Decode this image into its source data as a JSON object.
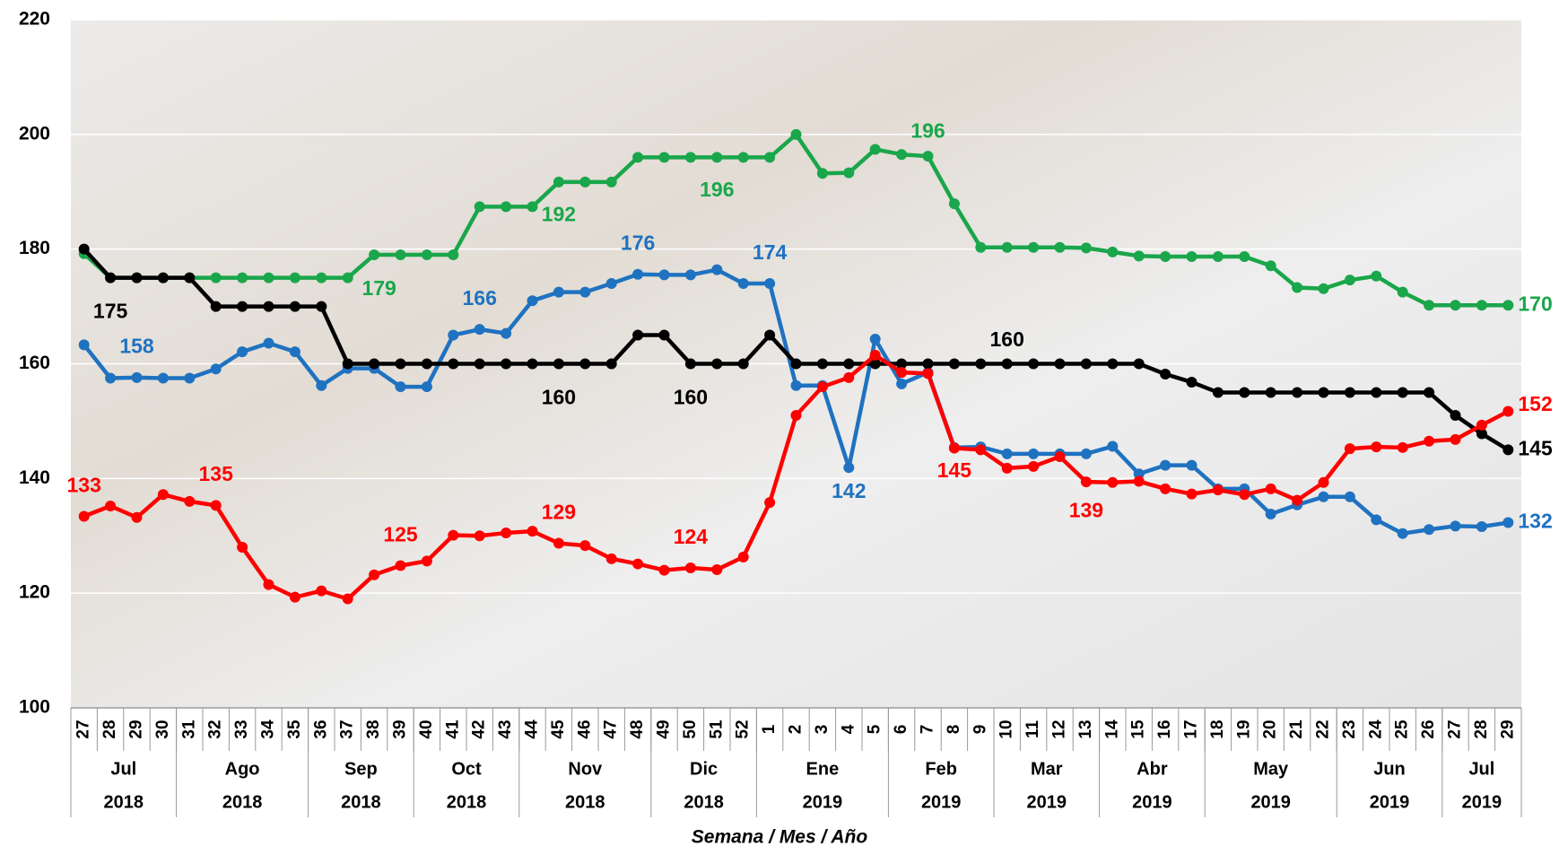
{
  "chart_data": {
    "type": "line",
    "x_title": "Semana / Mes / Año",
    "categories": [
      [
        "27",
        "Jul",
        "2018"
      ],
      [
        "28",
        "Jul",
        "2018"
      ],
      [
        "29",
        "Jul",
        "2018"
      ],
      [
        "30",
        "Jul",
        "2018"
      ],
      [
        "31",
        "Ago",
        "2018"
      ],
      [
        "32",
        "Ago",
        "2018"
      ],
      [
        "33",
        "Ago",
        "2018"
      ],
      [
        "34",
        "Ago",
        "2018"
      ],
      [
        "35",
        "Ago",
        "2018"
      ],
      [
        "36",
        "Sep",
        "2018"
      ],
      [
        "37",
        "Sep",
        "2018"
      ],
      [
        "38",
        "Sep",
        "2018"
      ],
      [
        "39",
        "Sep",
        "2018"
      ],
      [
        "40",
        "Oct",
        "2018"
      ],
      [
        "41",
        "Oct",
        "2018"
      ],
      [
        "42",
        "Oct",
        "2018"
      ],
      [
        "43",
        "Oct",
        "2018"
      ],
      [
        "44",
        "Nov",
        "2018"
      ],
      [
        "45",
        "Nov",
        "2018"
      ],
      [
        "46",
        "Nov",
        "2018"
      ],
      [
        "47",
        "Nov",
        "2018"
      ],
      [
        "48",
        "Nov",
        "2018"
      ],
      [
        "49",
        "Dic",
        "2018"
      ],
      [
        "50",
        "Dic",
        "2018"
      ],
      [
        "51",
        "Dic",
        "2018"
      ],
      [
        "52",
        "Dic",
        "2018"
      ],
      [
        "1",
        "Ene",
        "2019"
      ],
      [
        "2",
        "Ene",
        "2019"
      ],
      [
        "3",
        "Ene",
        "2019"
      ],
      [
        "4",
        "Ene",
        "2019"
      ],
      [
        "5",
        "Ene",
        "2019"
      ],
      [
        "6",
        "Feb",
        "2019"
      ],
      [
        "7",
        "Feb",
        "2019"
      ],
      [
        "8",
        "Feb",
        "2019"
      ],
      [
        "9",
        "Feb",
        "2019"
      ],
      [
        "10",
        "Mar",
        "2019"
      ],
      [
        "11",
        "Mar",
        "2019"
      ],
      [
        "12",
        "Mar",
        "2019"
      ],
      [
        "13",
        "Mar",
        "2019"
      ],
      [
        "14",
        "Abr",
        "2019"
      ],
      [
        "15",
        "Abr",
        "2019"
      ],
      [
        "16",
        "Abr",
        "2019"
      ],
      [
        "17",
        "Abr",
        "2019"
      ],
      [
        "18",
        "May",
        "2019"
      ],
      [
        "19",
        "May",
        "2019"
      ],
      [
        "20",
        "May",
        "2019"
      ],
      [
        "21",
        "May",
        "2019"
      ],
      [
        "22",
        "May",
        "2019"
      ],
      [
        "23",
        "Jun",
        "2019"
      ],
      [
        "24",
        "Jun",
        "2019"
      ],
      [
        "25",
        "Jun",
        "2019"
      ],
      [
        "26",
        "Jun",
        "2019"
      ],
      [
        "27",
        "Jul",
        "2019"
      ],
      [
        "28",
        "Jul",
        "2019"
      ],
      [
        "29",
        "Jul",
        "2019"
      ]
    ],
    "series": [
      {
        "color": "#1aa64a",
        "values": [
          179.2,
          175,
          175,
          175,
          175,
          175,
          175,
          175,
          175,
          175,
          175,
          179,
          179,
          179,
          179,
          187.4,
          187.4,
          187.4,
          191.7,
          191.7,
          191.7,
          196,
          196,
          196,
          196,
          196,
          196,
          200,
          193.2,
          193.3,
          197.4,
          196.5,
          196.2,
          187.9,
          180.3,
          180.3,
          180.3,
          180.3,
          180.2,
          179.5,
          178.8,
          178.7,
          178.7,
          178.7,
          178.7,
          177.1,
          173.3,
          173.1,
          174.6,
          175.3,
          172.5,
          170.2,
          170.2,
          170.2,
          170.2
        ],
        "value_labels": [
          null,
          null,
          null,
          null,
          null,
          null,
          null,
          null,
          null,
          null,
          null,
          "179",
          null,
          null,
          null,
          null,
          null,
          null,
          "192",
          null,
          null,
          null,
          null,
          null,
          "196",
          null,
          null,
          null,
          null,
          null,
          null,
          null,
          "196",
          null,
          null,
          null,
          null,
          null,
          null,
          null,
          null,
          null,
          null,
          null,
          null,
          null,
          null,
          null,
          null,
          null,
          null,
          null,
          null,
          null,
          "170"
        ]
      },
      {
        "color": "#1f72c0",
        "values": [
          163.3,
          157.5,
          157.6,
          157.5,
          157.5,
          159.1,
          162.1,
          163.6,
          162.1,
          156.2,
          159.2,
          159.2,
          156,
          156,
          165,
          166,
          165.3,
          171,
          172.5,
          172.5,
          174,
          175.6,
          175.5,
          175.5,
          176.4,
          174,
          174,
          156.2,
          156.2,
          141.9,
          164.3,
          156.5,
          158.5,
          145.4,
          145.5,
          144.3,
          144.3,
          144.3,
          144.3,
          145.6,
          140.8,
          142.3,
          142.3,
          138.2,
          138.2,
          133.8,
          135.4,
          136.8,
          136.8,
          132.8,
          130.4,
          131.1,
          131.7,
          131.6,
          132.3
        ],
        "value_labels": [
          null,
          null,
          "158",
          null,
          null,
          null,
          null,
          null,
          null,
          null,
          null,
          null,
          null,
          null,
          null,
          "166",
          null,
          null,
          null,
          null,
          null,
          "176",
          null,
          null,
          null,
          null,
          "174",
          null,
          null,
          "142",
          null,
          null,
          null,
          null,
          null,
          null,
          null,
          null,
          null,
          null,
          null,
          null,
          null,
          null,
          null,
          null,
          null,
          null,
          null,
          null,
          null,
          null,
          null,
          null,
          "132"
        ]
      },
      {
        "color": "#000000",
        "values": [
          180,
          175,
          175,
          175,
          175,
          170,
          170,
          170,
          170,
          170,
          160,
          160,
          160,
          160,
          160,
          160,
          160,
          160,
          160,
          160,
          160,
          165,
          165,
          160,
          160,
          160,
          165,
          160,
          160,
          160,
          160,
          160,
          160,
          160,
          160,
          160,
          160,
          160,
          160,
          160,
          160,
          158.2,
          156.8,
          155,
          155,
          155,
          155,
          155,
          155,
          155,
          155,
          155,
          151,
          147.8,
          145
        ],
        "value_labels": [
          null,
          "175",
          null,
          null,
          null,
          null,
          null,
          null,
          null,
          null,
          null,
          null,
          null,
          null,
          null,
          null,
          null,
          null,
          "160",
          null,
          null,
          null,
          null,
          "160",
          null,
          null,
          null,
          null,
          null,
          null,
          null,
          null,
          null,
          null,
          null,
          "160",
          null,
          null,
          null,
          null,
          null,
          null,
          null,
          null,
          null,
          null,
          null,
          null,
          null,
          null,
          null,
          null,
          null,
          null,
          "145"
        ]
      },
      {
        "color": "#ff0000",
        "values": [
          133.4,
          135.2,
          133.2,
          137.2,
          136,
          135.3,
          128,
          121.5,
          119.3,
          120.4,
          119,
          123.2,
          124.8,
          125.6,
          130.1,
          130,
          130.5,
          130.8,
          128.7,
          128.3,
          126,
          125.1,
          124,
          124.4,
          124.1,
          126.3,
          135.8,
          151,
          156,
          157.6,
          161.5,
          158.5,
          158.3,
          145.3,
          145,
          141.8,
          142.1,
          143.8,
          139.4,
          139.3,
          139.5,
          138.2,
          137.3,
          138,
          137.2,
          138.2,
          136.2,
          139.3,
          145.2,
          145.5,
          145.4,
          146.5,
          146.8,
          149.3,
          151.7
        ],
        "value_labels": [
          "133",
          null,
          null,
          null,
          null,
          "135",
          null,
          null,
          null,
          null,
          null,
          null,
          "125",
          null,
          null,
          null,
          null,
          null,
          "129",
          null,
          null,
          null,
          null,
          "124",
          null,
          null,
          null,
          null,
          null,
          null,
          null,
          null,
          null,
          "145",
          null,
          null,
          null,
          null,
          "139",
          null,
          null,
          null,
          null,
          null,
          null,
          null,
          null,
          null,
          null,
          null,
          null,
          null,
          null,
          null,
          "152"
        ]
      }
    ],
    "ylim": [
      100,
      220
    ],
    "yticks": [
      100,
      120,
      140,
      160,
      180,
      200,
      220
    ],
    "grid": true
  }
}
